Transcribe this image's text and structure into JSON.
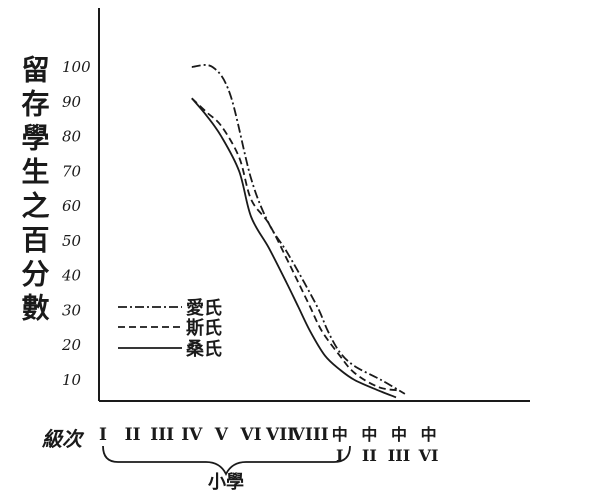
{
  "chart_data": {
    "type": "line",
    "ylabel": "留存學生之百分數",
    "xlabel": "級次",
    "y_ticks": [
      "100",
      "90",
      "80",
      "70",
      "60",
      "50",
      "40",
      "30",
      "20",
      "10"
    ],
    "y_tick_values": [
      100,
      90,
      80,
      70,
      60,
      50,
      40,
      30,
      20,
      10
    ],
    "ylim": [
      7,
      100
    ],
    "x_categories": [
      {
        "top": "I",
        "bottom": ""
      },
      {
        "top": "II",
        "bottom": ""
      },
      {
        "top": "III",
        "bottom": ""
      },
      {
        "top": "IV",
        "bottom": ""
      },
      {
        "top": "V",
        "bottom": ""
      },
      {
        "top": "VI",
        "bottom": ""
      },
      {
        "top": "VII",
        "bottom": ""
      },
      {
        "top": "VIII",
        "bottom": ""
      },
      {
        "top": "中",
        "bottom": "I"
      },
      {
        "top": "中",
        "bottom": "II"
      },
      {
        "top": "中",
        "bottom": "III"
      },
      {
        "top": "中",
        "bottom": "VI"
      }
    ],
    "bracket_label": "小學",
    "grid": false,
    "legend_position": "bottom-left",
    "series": [
      {
        "name": "愛氏",
        "style": "dash-dot",
        "points": [
          [
            4,
            100
          ],
          [
            4.7,
            100
          ],
          [
            5.3,
            92
          ],
          [
            6,
            68
          ],
          [
            6.6,
            55
          ],
          [
            7.2,
            47
          ],
          [
            7.8,
            38
          ],
          [
            8.3,
            30
          ],
          [
            8.6,
            24
          ],
          [
            9,
            18
          ],
          [
            9.5,
            14
          ],
          [
            10.4,
            10
          ],
          [
            11.2,
            6
          ]
        ]
      },
      {
        "name": "斯氏",
        "style": "dashed",
        "points": [
          [
            4,
            91
          ],
          [
            4.5,
            87
          ],
          [
            5,
            83
          ],
          [
            5.6,
            74
          ],
          [
            6,
            62
          ],
          [
            6.6,
            55
          ],
          [
            7.2,
            45
          ],
          [
            7.6,
            38
          ],
          [
            8,
            31
          ],
          [
            8.4,
            24
          ],
          [
            9,
            17
          ],
          [
            9.5,
            12
          ],
          [
            10.3,
            8
          ],
          [
            11,
            7
          ]
        ]
      },
      {
        "name": "桑氏",
        "style": "solid",
        "points": [
          [
            4,
            91
          ],
          [
            4.5,
            86
          ],
          [
            5,
            80
          ],
          [
            5.6,
            70
          ],
          [
            6,
            57
          ],
          [
            6.6,
            48
          ],
          [
            7.2,
            38
          ],
          [
            7.6,
            31
          ],
          [
            8,
            24
          ],
          [
            8.5,
            17
          ],
          [
            9,
            13
          ],
          [
            9.5,
            10
          ],
          [
            10.3,
            7
          ],
          [
            10.9,
            5
          ]
        ]
      }
    ]
  }
}
